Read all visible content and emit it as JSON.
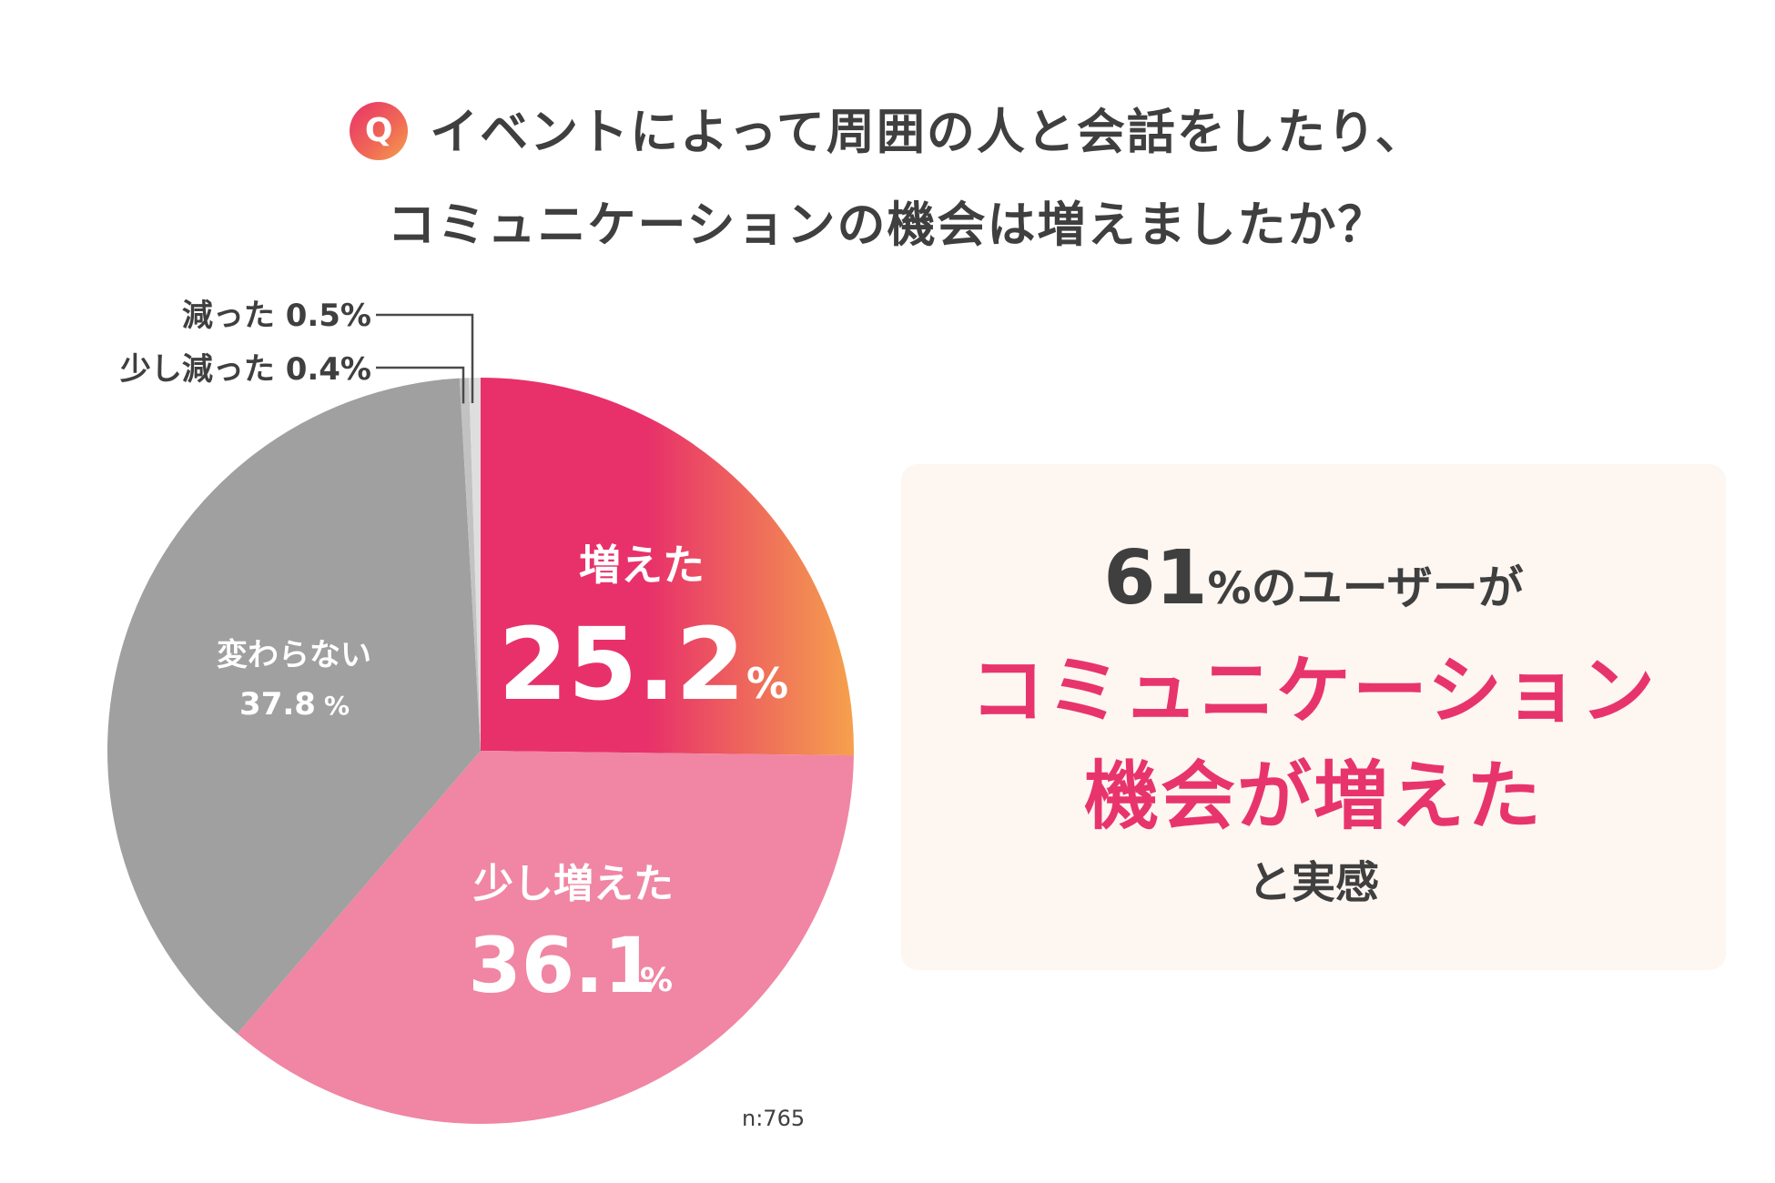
{
  "question": {
    "badge": "Q",
    "line1": "イベントによって周囲の人と会話をしたり、",
    "line2": "コミュニケーションの機会は増えましたか？"
  },
  "chart_data": {
    "type": "pie",
    "unit": "%",
    "slices": [
      {
        "label": "増えた",
        "value": 25.2,
        "display": "25.2",
        "color": "#e8316a",
        "color_end": "#f5a14d"
      },
      {
        "label": "少し増えた",
        "value": 36.1,
        "display": "36.1",
        "color": "#f086a3"
      },
      {
        "label": "変わらない",
        "value": 37.8,
        "display": "37.8",
        "color": "#a0a0a0"
      },
      {
        "label": "少し減った",
        "value": 0.4,
        "display": "0.4",
        "color": "#c2c2c2"
      },
      {
        "label": "減った",
        "value": 0.5,
        "display": "0.5",
        "color": "#dedede"
      }
    ],
    "callouts": [
      "減った 0.5%",
      "少し減った 0.4%"
    ],
    "sample": "n:765"
  },
  "summary": {
    "stat_number": "61",
    "stat_unit": "%",
    "stat_suffix": "のユーザーが",
    "highlight_line1": "コミュニケーション",
    "highlight_line2": "機会が増えた",
    "tail": "と実感"
  },
  "colors": {
    "accent": "#e8346d",
    "text": "#3f3f3f",
    "panel_bg": "#fdf6f1"
  }
}
